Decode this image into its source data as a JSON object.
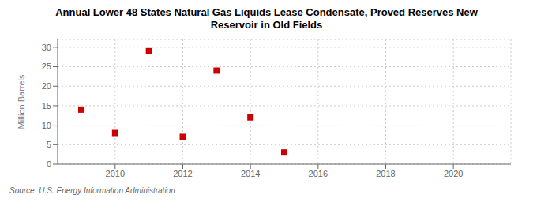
{
  "chart_data": {
    "type": "scatter",
    "title": "Annual Lower 48 States Natural Gas Liquids Lease Condensate, Proved Reserves New\nReservoir in Old Fields",
    "ylabel": "Million Barrels",
    "annotations": [
      "Source: U.S. Energy Information Administration"
    ],
    "x": [
      2009,
      2010,
      2011,
      2012,
      2013,
      2014,
      2015
    ],
    "values": [
      14.0,
      8.0,
      29.0,
      7.0,
      24.0,
      12.0,
      3.0
    ],
    "color": "#cc0000",
    "marker": "square",
    "xlim": [
      2008.3,
      2021.7
    ],
    "ylim": [
      0,
      32
    ],
    "xticks": [
      2010,
      2012,
      2014,
      2016,
      2018,
      2020
    ],
    "yticks": [
      0,
      5,
      10,
      15,
      20,
      25,
      30
    ],
    "grid": true
  }
}
